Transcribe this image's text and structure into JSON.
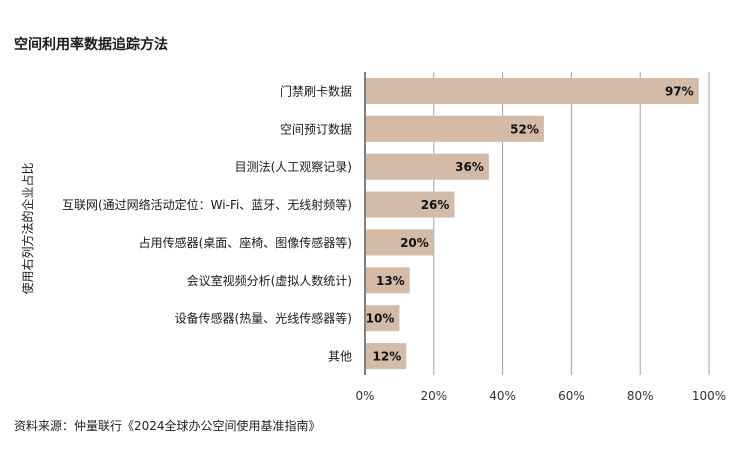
{
  "title": "空间利用率数据追踪方法",
  "source": "资料来源：仲量联行《2024全球办公空间使用基准指南》",
  "chart_data": {
    "type": "bar",
    "orientation": "horizontal",
    "title": "空间利用率数据追踪方法",
    "ylabel": "使用右列方法的企业占比",
    "xlabel": "",
    "categories": [
      "门禁刷卡数据",
      "空间预订数据",
      "目测法(人工观察记录)",
      "互联网(通过网络活动定位：Wi-Fi、蓝牙、无线射频等)",
      "占用传感器(桌面、座椅、图像传感器等)",
      "会议室视频分析(虚拟人数统计)",
      "设备传感器(热量、光线传感器等)",
      "其他"
    ],
    "values": [
      97,
      52,
      36,
      26,
      20,
      13,
      10,
      12
    ],
    "value_labels": [
      "97%",
      "52%",
      "36%",
      "26%",
      "20%",
      "13%",
      "10%",
      "12%"
    ],
    "xlim": [
      0,
      100
    ],
    "xticks": [
      0,
      20,
      40,
      60,
      80,
      100
    ],
    "xtick_labels": [
      "0%",
      "20%",
      "40%",
      "60%",
      "80%",
      "100%"
    ],
    "grid": true,
    "bar_color": "#d4bba8",
    "grid_color": "#9aa3a8"
  }
}
